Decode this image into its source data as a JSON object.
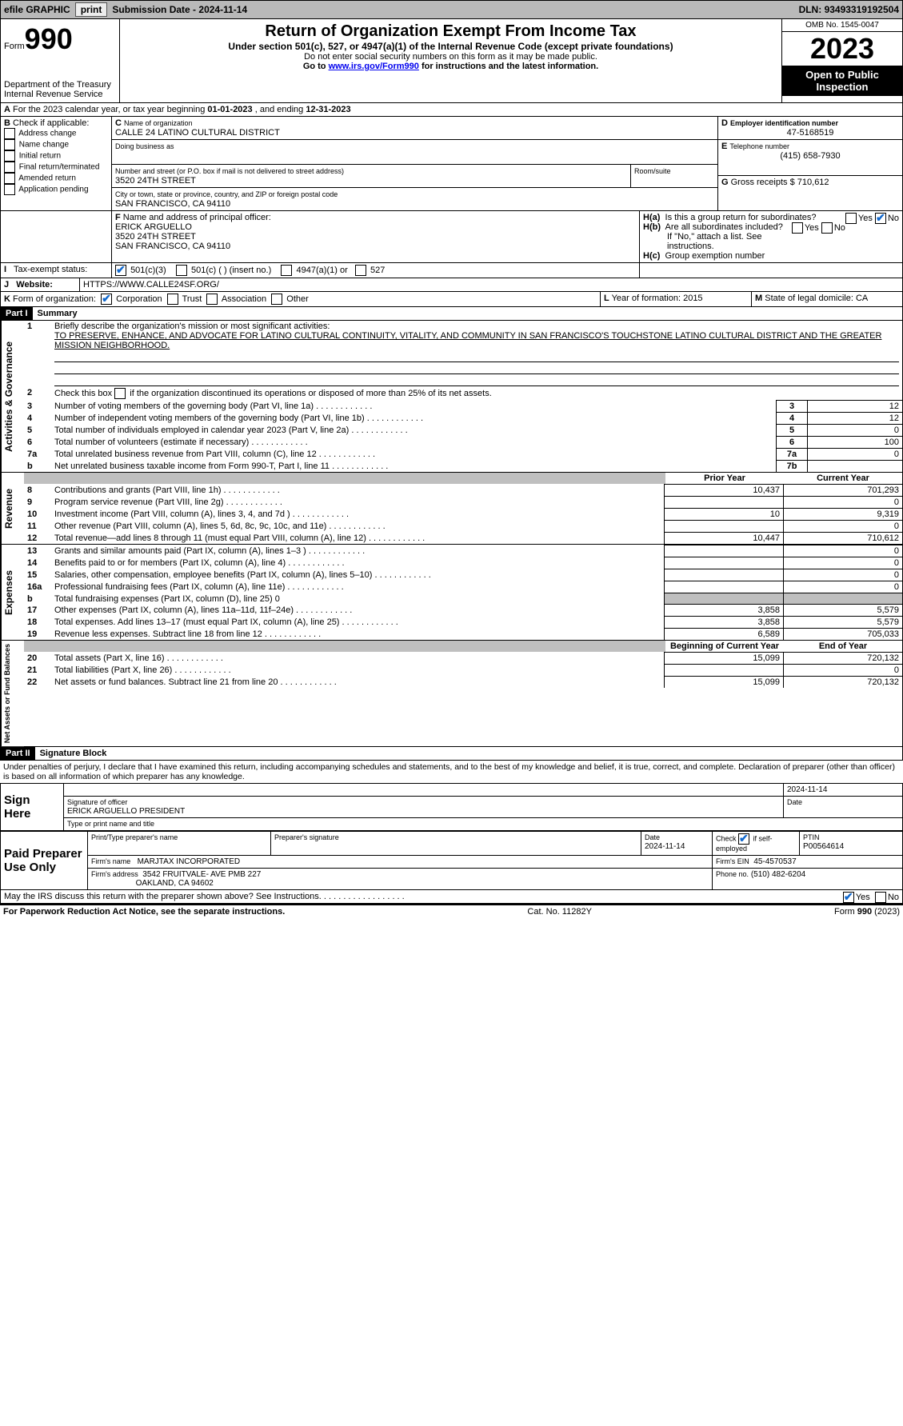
{
  "topbar": {
    "efile": "efile GRAPHIC",
    "print": "print",
    "submission_label": "Submission Date - ",
    "submission_date": "2024-11-14",
    "dln_label": "DLN: ",
    "dln": "93493319192504"
  },
  "header": {
    "form_label": "Form",
    "form_no": "990",
    "dept": "Department of the Treasury",
    "irs": "Internal Revenue Service",
    "title": "Return of Organization Exempt From Income Tax",
    "subtitle": "Under section 501(c), 527, or 4947(a)(1) of the Internal Revenue Code (except private foundations)",
    "note1": "Do not enter social security numbers on this form as it may be made public.",
    "note2_pre": "Go to ",
    "note2_link": "www.irs.gov/Form990",
    "note2_post": " for instructions and the latest information.",
    "omb": "OMB No. 1545-0047",
    "year": "2023",
    "open": "Open to Public Inspection"
  },
  "sectionA": {
    "line": "For the 2023 calendar year, or tax year beginning ",
    "begin": "01-01-2023",
    "mid": " , and ending ",
    "end": "12-31-2023"
  },
  "sectionB": {
    "label": "Check if applicable:",
    "items": [
      "Address change",
      "Name change",
      "Initial return",
      "Final return/terminated",
      "Amended return",
      "Application pending"
    ]
  },
  "sectionC": {
    "name_lbl": "Name of organization",
    "name": "CALLE 24 LATINO CULTURAL DISTRICT",
    "dba_lbl": "Doing business as",
    "addr_lbl": "Number and street (or P.O. box if mail is not delivered to street address)",
    "addr": "3520 24TH STREET",
    "room_lbl": "Room/suite",
    "city_lbl": "City or town, state or province, country, and ZIP or foreign postal code",
    "city": "SAN FRANCISCO, CA  94110"
  },
  "sectionD": {
    "lbl": "Employer identification number",
    "val": "47-5168519"
  },
  "sectionE": {
    "lbl": "Telephone number",
    "val": "(415) 658-7930"
  },
  "sectionG": {
    "lbl": "Gross receipts $",
    "val": "710,612"
  },
  "sectionF": {
    "lbl": "Name and address of principal officer:",
    "name": "ERICK ARGUELLO",
    "addr1": "3520 24TH STREET",
    "addr2": "SAN FRANCISCO, CA  94110"
  },
  "sectionH": {
    "ha": "Is this a group return for subordinates?",
    "hb": "Are all subordinates included?",
    "hb_note": "If \"No,\" attach a list. See instructions.",
    "hc": "Group exemption number"
  },
  "sectionI": {
    "lbl": "Tax-exempt status:",
    "o1": "501(c)(3)",
    "o2": "501(c) (  ) (insert no.)",
    "o3": "4947(a)(1) or",
    "o4": "527"
  },
  "sectionJ": {
    "lbl": "Website:",
    "val": "HTTPS://WWW.CALLE24SF.ORG/"
  },
  "sectionK": {
    "lbl": "Form of organization:",
    "o1": "Corporation",
    "o2": "Trust",
    "o3": "Association",
    "o4": "Other"
  },
  "sectionL": {
    "lbl": "Year of formation: ",
    "val": "2015"
  },
  "sectionM": {
    "lbl": "State of legal domicile: ",
    "val": "CA"
  },
  "part1": {
    "header": "Part I",
    "title": "Summary",
    "line1_lbl": "Briefly describe the organization's mission or most significant activities:",
    "mission": "TO PRESERVE, ENHANCE, AND ADVOCATE FOR LATINO CULTURAL CONTINUITY, VITALITY, AND COMMUNITY IN SAN FRANCISCO'S TOUCHSTONE LATINO CULTURAL DISTRICT AND THE GREATER MISSION NEIGHBORHOOD.",
    "line2": "Check this box     if the organization discontinued its operations or disposed of more than 25% of its net assets.",
    "rows_top": [
      {
        "n": "3",
        "t": "Number of voting members of the governing body (Part VI, line 1a)",
        "l": "3",
        "v": "12"
      },
      {
        "n": "4",
        "t": "Number of independent voting members of the governing body (Part VI, line 1b)",
        "l": "4",
        "v": "12"
      },
      {
        "n": "5",
        "t": "Total number of individuals employed in calendar year 2023 (Part V, line 2a)",
        "l": "5",
        "v": "0"
      },
      {
        "n": "6",
        "t": "Total number of volunteers (estimate if necessary)",
        "l": "6",
        "v": "100"
      },
      {
        "n": "7a",
        "t": "Total unrelated business revenue from Part VIII, column (C), line 12",
        "l": "7a",
        "v": "0"
      },
      {
        "n": "b",
        "t": "Net unrelated business taxable income from Form 990-T, Part I, line 11",
        "l": "7b",
        "v": ""
      }
    ],
    "col_prior": "Prior Year",
    "col_current": "Current Year",
    "revenue_rows": [
      {
        "n": "8",
        "t": "Contributions and grants (Part VIII, line 1h)",
        "p": "10,437",
        "c": "701,293"
      },
      {
        "n": "9",
        "t": "Program service revenue (Part VIII, line 2g)",
        "p": "",
        "c": "0"
      },
      {
        "n": "10",
        "t": "Investment income (Part VIII, column (A), lines 3, 4, and 7d )",
        "p": "10",
        "c": "9,319"
      },
      {
        "n": "11",
        "t": "Other revenue (Part VIII, column (A), lines 5, 6d, 8c, 9c, 10c, and 11e)",
        "p": "",
        "c": "0"
      },
      {
        "n": "12",
        "t": "Total revenue—add lines 8 through 11 (must equal Part VIII, column (A), line 12)",
        "p": "10,447",
        "c": "710,612"
      }
    ],
    "expense_rows": [
      {
        "n": "13",
        "t": "Grants and similar amounts paid (Part IX, column (A), lines 1–3 )",
        "p": "",
        "c": "0"
      },
      {
        "n": "14",
        "t": "Benefits paid to or for members (Part IX, column (A), line 4)",
        "p": "",
        "c": "0"
      },
      {
        "n": "15",
        "t": "Salaries, other compensation, employee benefits (Part IX, column (A), lines 5–10)",
        "p": "",
        "c": "0"
      },
      {
        "n": "16a",
        "t": "Professional fundraising fees (Part IX, column (A), line 11e)",
        "p": "",
        "c": "0"
      },
      {
        "n": "b",
        "t": "Total fundraising expenses (Part IX, column (D), line 25) 0",
        "p": "grey",
        "c": "grey"
      },
      {
        "n": "17",
        "t": "Other expenses (Part IX, column (A), lines 11a–11d, 11f–24e)",
        "p": "3,858",
        "c": "5,579"
      },
      {
        "n": "18",
        "t": "Total expenses. Add lines 13–17 (must equal Part IX, column (A), line 25)",
        "p": "3,858",
        "c": "5,579"
      },
      {
        "n": "19",
        "t": "Revenue less expenses. Subtract line 18 from line 12",
        "p": "6,589",
        "c": "705,033"
      }
    ],
    "col_begin": "Beginning of Current Year",
    "col_end": "End of Year",
    "net_rows": [
      {
        "n": "20",
        "t": "Total assets (Part X, line 16)",
        "p": "15,099",
        "c": "720,132"
      },
      {
        "n": "21",
        "t": "Total liabilities (Part X, line 26)",
        "p": "",
        "c": "0"
      },
      {
        "n": "22",
        "t": "Net assets or fund balances. Subtract line 21 from line 20",
        "p": "15,099",
        "c": "720,132"
      }
    ]
  },
  "part2": {
    "header": "Part II",
    "title": "Signature Block",
    "declaration": "Under penalties of perjury, I declare that I have examined this return, including accompanying schedules and statements, and to the best of my knowledge and belief, it is true, correct, and complete. Declaration of preparer (other than officer) is based on all information of which preparer has any knowledge.",
    "sign_here": "Sign Here",
    "sig_officer_lbl": "Signature of officer",
    "sig_date": "2024-11-14",
    "officer_name": "ERICK ARGUELLO  PRESIDENT",
    "officer_title_lbl": "Type or print name and title",
    "paid": "Paid Preparer Use Only",
    "prep_name_lbl": "Print/Type preparer's name",
    "prep_sig_lbl": "Preparer's signature",
    "prep_date_lbl": "Date",
    "prep_date": "2024-11-14",
    "self_emp": "Check         if self-employed",
    "ptin_lbl": "PTIN",
    "ptin": "P00564614",
    "firm_lbl": "Firm's name",
    "firm": "MARJTAX INCORPORATED",
    "firm_ein_lbl": "Firm's EIN",
    "firm_ein": "45-4570537",
    "firm_addr_lbl": "Firm's address",
    "firm_addr1": "3542 FRUITVALE- AVE PMB 227",
    "firm_addr2": "OAKLAND, CA  94602",
    "phone_lbl": "Phone no.",
    "phone": "(510) 482-6204",
    "discuss": "May the IRS discuss this return with the preparer shown above? See Instructions."
  },
  "footer": {
    "left": "For Paperwork Reduction Act Notice, see the separate instructions.",
    "mid": "Cat. No. 11282Y",
    "right": "Form 990 (2023)"
  },
  "labels": {
    "activities": "Activities & Governance",
    "revenue": "Revenue",
    "expenses": "Expenses",
    "net": "Net Assets or Fund Balances",
    "yes": "Yes",
    "no": "No",
    "date": "Date",
    "A": "A",
    "B": "B",
    "C": "C",
    "D": "D",
    "E": "E",
    "F": "F",
    "G": "G",
    "H": "H",
    "I": "I",
    "J": "J",
    "K": "K",
    "L": "L",
    "M": "M",
    "ha": "H(a)",
    "hb": "H(b)",
    "hc": "H(c)"
  }
}
